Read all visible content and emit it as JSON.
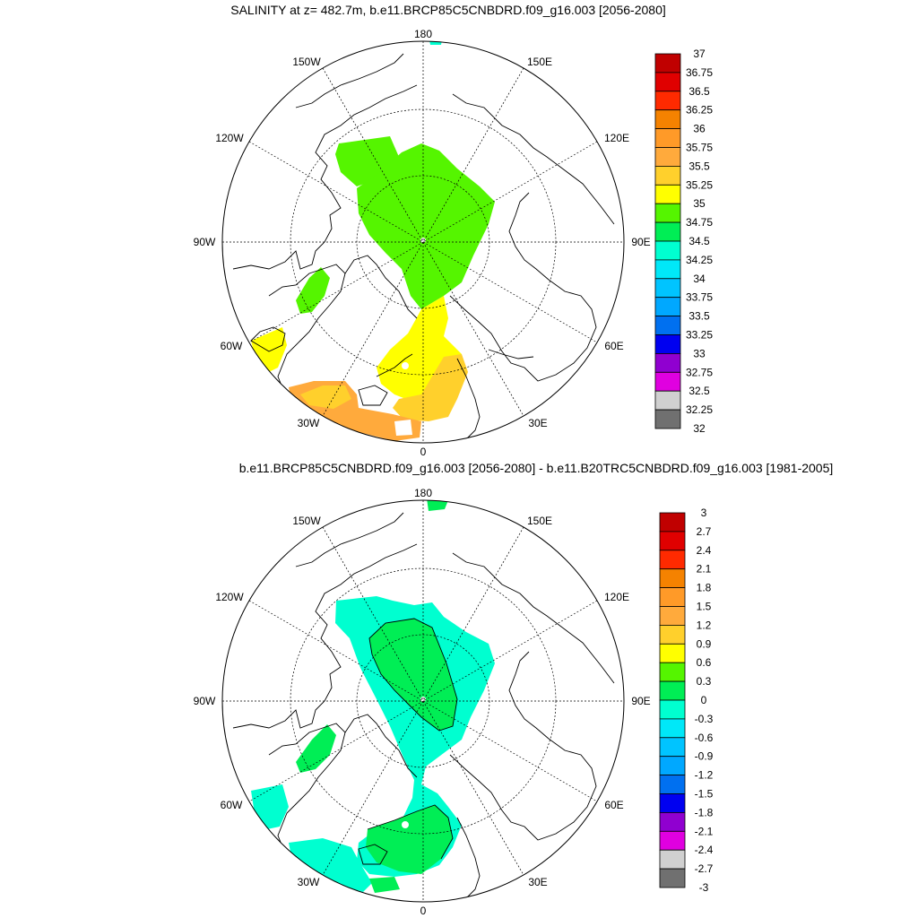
{
  "top_panel": {
    "title": "SALINITY at z= 482.7m, b.e11.BRCP85C5CNBDRD.f09_g16.003 [2056-2080]",
    "lon_labels": [
      "180",
      "150E",
      "120E",
      "90E",
      "60E",
      "30E",
      "0",
      "30W",
      "60W",
      "90W",
      "120W",
      "150W"
    ],
    "colorbar": {
      "labels": [
        "37",
        "36.75",
        "36.5",
        "36.25",
        "36",
        "35.75",
        "35.5",
        "35.25",
        "35",
        "34.75",
        "34.5",
        "34.25",
        "34",
        "33.75",
        "33.5",
        "33.25",
        "33",
        "32.75",
        "32.5",
        "32.25",
        "32"
      ],
      "colors": [
        "#c00000",
        "#e00000",
        "#ff2a00",
        "#f58200",
        "#ff9a28",
        "#ffaa3c",
        "#ffd02c",
        "#ffff00",
        "#55f500",
        "#00ee55",
        "#00ffd0",
        "#00e8f8",
        "#00c4ff",
        "#00a8ff",
        "#0070f0",
        "#0000f0",
        "#9000d0",
        "#e000e0",
        "#d0d0d0",
        "#707070"
      ]
    }
  },
  "bottom_panel": {
    "title": "b.e11.BRCP85C5CNBDRD.f09_g16.003 [2056-2080] - b.e11.B20TRC5CNBDRD.f09_g16.003 [1981-2005]",
    "lon_labels": [
      "180",
      "150E",
      "120E",
      "90E",
      "60E",
      "30E",
      "0",
      "30W",
      "60W",
      "90W",
      "120W",
      "150W"
    ],
    "colorbar": {
      "labels": [
        "3",
        "2.7",
        "2.4",
        "2.1",
        "1.8",
        "1.5",
        "1.2",
        "0.9",
        "0.6",
        "0.3",
        "0",
        "-0.3",
        "-0.6",
        "-0.9",
        "-1.2",
        "-1.5",
        "-1.8",
        "-2.1",
        "-2.4",
        "-2.7",
        "-3"
      ],
      "colors": [
        "#c00000",
        "#e00000",
        "#ff2a00",
        "#f58200",
        "#ff9a28",
        "#ffaa3c",
        "#ffd02c",
        "#ffff00",
        "#55f500",
        "#00ee55",
        "#00ffd0",
        "#00e8f8",
        "#00c4ff",
        "#00a8ff",
        "#0070f0",
        "#0000f0",
        "#9000d0",
        "#e000e0",
        "#d0d0d0",
        "#707070"
      ]
    }
  },
  "fill_colors": {
    "green": "#55f500",
    "teal_green": "#00ee55",
    "yellow": "#ffff00",
    "gold": "#ffd02c",
    "orange": "#ffaa3c",
    "cyan": "#00ffd0"
  }
}
